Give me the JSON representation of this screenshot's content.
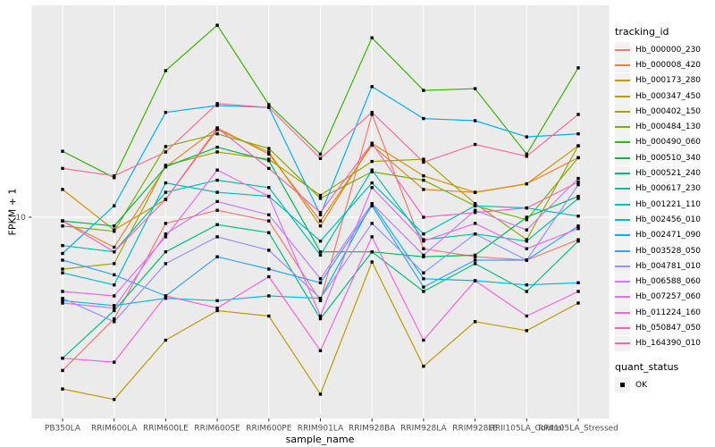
{
  "y_axis": {
    "label": "FPKM + 1",
    "ticks": [
      "10"
    ],
    "tick_values": [
      10
    ]
  },
  "x_axis": {
    "label": "sample_name"
  },
  "legend": {
    "title": "tracking_id",
    "quant_title": "quant_status",
    "quant_entries": [
      {
        "label": "OK"
      }
    ]
  },
  "style": {
    "panel_bg": "#EBEBEB",
    "grid_color": "#FFFFFF",
    "tick_color": "#333333",
    "axis_text_color": "#4D4D4D",
    "point_color": "#000000",
    "legend_key_bg": "#F2F2F2"
  },
  "chart_data": {
    "type": "line",
    "title": "",
    "xlabel": "sample_name",
    "ylabel": "FPKM + 1",
    "yscale": "log10",
    "ylim": [
      1.9,
      57
    ],
    "y_ticks": [
      10
    ],
    "grid": "white major gridlines on gray panel; vertical line per category, horizontal at 10",
    "legend_position": "right",
    "point_shape": "filled-black-square",
    "categories": [
      "PB350LA",
      "RRIM600LA",
      "RRIM600LE",
      "RRIM600SE",
      "RRIM600PE",
      "RRIM901LA",
      "RRIM928BA",
      "RRIM928LA",
      "RRIM928LE",
      "RRII105LA_Control",
      "RRII105LA_Stressed"
    ],
    "series": [
      {
        "name": "Hb_000000_230",
        "color": "#F8766D",
        "values": [
          2.8,
          4.3,
          9.5,
          10.6,
          9.7,
          5.0,
          23.5,
          7.7,
          7.2,
          7.0,
          8.3
        ]
      },
      {
        "name": "Hb_000008_420",
        "color": "#EA8331",
        "values": [
          9.7,
          7.8,
          15.2,
          21.0,
          16.9,
          9.7,
          18.2,
          12.6,
          12.3,
          13.2,
          16.4
        ]
      },
      {
        "name": "Hb_000173_280",
        "color": "#D89000",
        "values": [
          12.6,
          9.0,
          11.6,
          20.7,
          17.2,
          9.3,
          18.5,
          14.1,
          12.3,
          13.2,
          18.1
        ]
      },
      {
        "name": "Hb_000347_450",
        "color": "#C09B00",
        "values": [
          2.4,
          2.2,
          3.6,
          4.6,
          4.4,
          2.3,
          6.9,
          2.9,
          4.2,
          3.9,
          4.9
        ]
      },
      {
        "name": "Hb_000402_150",
        "color": "#A3A500",
        "values": [
          6.5,
          6.8,
          15.4,
          17.2,
          16.2,
          12.0,
          15.9,
          16.2,
          11.2,
          8.3,
          18.1
        ]
      },
      {
        "name": "Hb_000484_130",
        "color": "#7CAE00",
        "values": [
          9.3,
          8.9,
          18.0,
          20.0,
          17.7,
          11.7,
          14.6,
          13.6,
          11.0,
          9.8,
          16.4
        ]
      },
      {
        "name": "Hb_000490_060",
        "color": "#39B600",
        "values": [
          17.3,
          13.9,
          33.8,
          49.3,
          25.5,
          16.9,
          44.4,
          28.7,
          29.1,
          16.9,
          34.6
        ]
      },
      {
        "name": "Hb_000510_340",
        "color": "#00BB4E",
        "values": [
          9.7,
          9.3,
          15.2,
          17.9,
          16.0,
          7.5,
          7.5,
          7.2,
          7.3,
          10.0,
          11.9
        ]
      },
      {
        "name": "Hb_000521_240",
        "color": "#00BF7D",
        "values": [
          3.1,
          4.6,
          7.5,
          9.4,
          8.8,
          4.3,
          7.5,
          5.4,
          6.8,
          5.4,
          8.2
        ]
      },
      {
        "name": "Hb_000617_230",
        "color": "#00C1A3",
        "values": [
          7.9,
          7.5,
          12.3,
          13.6,
          12.8,
          7.3,
          14.8,
          8.3,
          8.7,
          8.2,
          11.7
        ]
      },
      {
        "name": "Hb_001221_110",
        "color": "#00BFC4",
        "values": [
          6.3,
          5.7,
          13.3,
          12.3,
          11.9,
          8.2,
          13.3,
          8.7,
          11.0,
          10.8,
          10.1
        ]
      },
      {
        "name": "Hb_002456_010",
        "color": "#00BAE0",
        "values": [
          5.0,
          4.8,
          5.1,
          5.0,
          5.2,
          5.1,
          11.2,
          6.0,
          5.9,
          5.7,
          5.8
        ]
      },
      {
        "name": "Hb_002471_090",
        "color": "#00B0F6",
        "values": [
          7.4,
          11.0,
          23.9,
          25.3,
          24.9,
          10.2,
          29.6,
          22.7,
          22.3,
          19.5,
          20.0
        ]
      },
      {
        "name": "Hb_003528_050",
        "color": "#35A2FF",
        "values": [
          7.0,
          6.2,
          5.2,
          7.2,
          6.5,
          5.8,
          11.0,
          5.6,
          7.0,
          7.0,
          9.3
        ]
      },
      {
        "name": "Hb_004781_010",
        "color": "#9590FF",
        "values": [
          5.1,
          4.2,
          6.8,
          8.5,
          7.6,
          5.1,
          9.5,
          6.3,
          8.7,
          7.0,
          13.1
        ]
      },
      {
        "name": "Hb_006588_060",
        "color": "#C77CFF",
        "values": [
          4.9,
          4.7,
          8.7,
          11.4,
          10.2,
          6.0,
          11.2,
          7.3,
          10.6,
          9.0,
          13.8
        ]
      },
      {
        "name": "Hb_007257_060",
        "color": "#E76BF3",
        "values": [
          5.4,
          5.2,
          8.5,
          14.8,
          11.9,
          4.4,
          12.8,
          8.2,
          9.5,
          7.7,
          9.1
        ]
      },
      {
        "name": "Hb_011224_160",
        "color": "#FA62DB",
        "values": [
          3.1,
          3.0,
          5.2,
          4.7,
          6.1,
          3.3,
          8.5,
          3.6,
          5.9,
          4.4,
          5.4
        ]
      },
      {
        "name": "Hb_050847_050",
        "color": "#FF62BC",
        "values": [
          9.7,
          7.5,
          11.6,
          21.0,
          15.0,
          10.4,
          18.5,
          10.0,
          10.4,
          10.8,
          13.4
        ]
      },
      {
        "name": "Hb_164390_010",
        "color": "#FF6A98",
        "values": [
          15.0,
          14.1,
          17.2,
          25.7,
          24.9,
          16.3,
          23.9,
          15.8,
          18.3,
          16.6,
          23.5
        ]
      }
    ]
  }
}
